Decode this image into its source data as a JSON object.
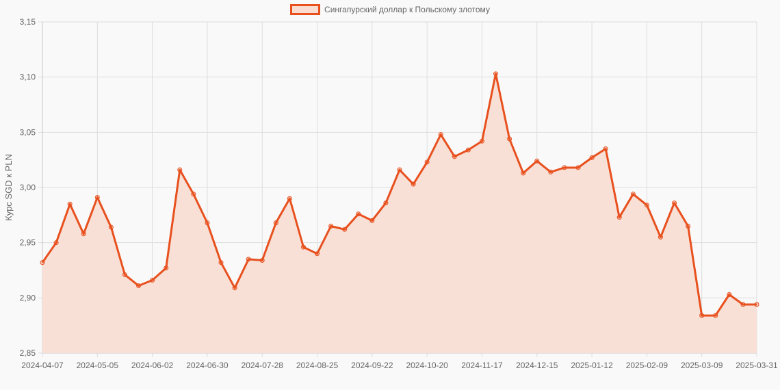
{
  "chart_data": {
    "type": "area",
    "title": "",
    "legend": [
      "Сингапурский доллар к Польскому злотому"
    ],
    "legend_position": "top",
    "xlabel": "",
    "ylabel": "Курс SGD к PLN",
    "ylim": [
      2.85,
      3.15
    ],
    "yticks": [
      "3,15",
      "3,10",
      "3,05",
      "3,00",
      "2,95",
      "2,90",
      "2,85"
    ],
    "xtick_labels": [
      "2024-04-07",
      "2024-05-05",
      "2024-06-02",
      "2024-06-30",
      "2024-07-28",
      "2024-08-25",
      "2024-09-22",
      "2024-10-20",
      "2024-11-17",
      "2024-12-15",
      "2025-01-12",
      "2025-02-09",
      "2025-03-09",
      "2025-03-31"
    ],
    "grid": true,
    "colors": {
      "line": "#e8501e",
      "fill": "#f8e0d6",
      "grid": "#dddddd"
    },
    "series": [
      {
        "name": "Сингапурский доллар к Польскому злотому",
        "values": [
          2.932,
          2.95,
          2.985,
          2.958,
          2.991,
          2.964,
          2.921,
          2.911,
          2.916,
          2.927,
          3.016,
          2.994,
          2.968,
          2.932,
          2.909,
          2.935,
          2.934,
          2.968,
          2.99,
          2.946,
          2.94,
          2.965,
          2.962,
          2.976,
          2.97,
          2.986,
          3.016,
          3.003,
          3.023,
          3.048,
          3.028,
          3.034,
          3.042,
          3.103,
          3.044,
          3.013,
          3.024,
          3.014,
          3.018,
          3.018,
          3.027,
          3.035,
          2.973,
          2.994,
          2.984,
          2.955,
          2.986,
          2.965,
          2.884,
          2.884,
          2.903,
          2.894,
          2.894
        ]
      }
    ]
  }
}
